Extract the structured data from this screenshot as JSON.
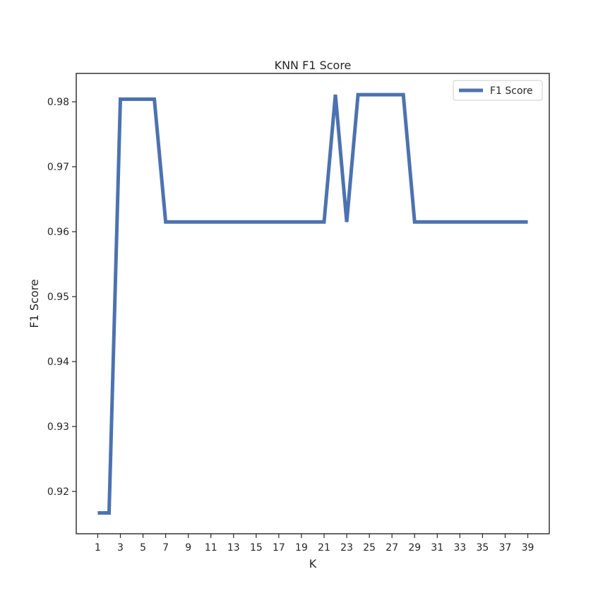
{
  "chart_data": {
    "type": "line",
    "title": "KNN F1 Score",
    "xlabel": "K",
    "ylabel": "F1 Score",
    "x": [
      1,
      2,
      3,
      4,
      5,
      6,
      7,
      8,
      9,
      10,
      11,
      12,
      13,
      14,
      15,
      16,
      17,
      18,
      19,
      20,
      21,
      22,
      23,
      24,
      25,
      26,
      27,
      28,
      29,
      30,
      31,
      32,
      33,
      34,
      35,
      36,
      37,
      38,
      39
    ],
    "series": [
      {
        "name": "F1 Score",
        "color": "#4c72b0",
        "values": [
          0.9167,
          0.9167,
          0.9804,
          0.9804,
          0.9804,
          0.9804,
          0.9615,
          0.9615,
          0.9615,
          0.9615,
          0.9615,
          0.9615,
          0.9615,
          0.9615,
          0.9615,
          0.9615,
          0.9615,
          0.9615,
          0.9615,
          0.9615,
          0.9615,
          0.9811,
          0.9615,
          0.9811,
          0.9811,
          0.9811,
          0.9811,
          0.9811,
          0.9615,
          0.9615,
          0.9615,
          0.9615,
          0.9615,
          0.9615,
          0.9615,
          0.9615,
          0.9615,
          0.9615,
          0.9615
        ]
      }
    ],
    "xticks": [
      "1",
      "3",
      "5",
      "7",
      "9",
      "11",
      "13",
      "15",
      "17",
      "19",
      "21",
      "23",
      "25",
      "27",
      "29",
      "31",
      "33",
      "35",
      "37",
      "39"
    ],
    "yticks": [
      "0.92",
      "0.93",
      "0.94",
      "0.95",
      "0.96",
      "0.97",
      "0.98"
    ],
    "xlim": [
      -0.9,
      40.9
    ],
    "ylim": [
      0.91349,
      0.98437
    ],
    "grid": false,
    "legend_position": "top-right"
  }
}
